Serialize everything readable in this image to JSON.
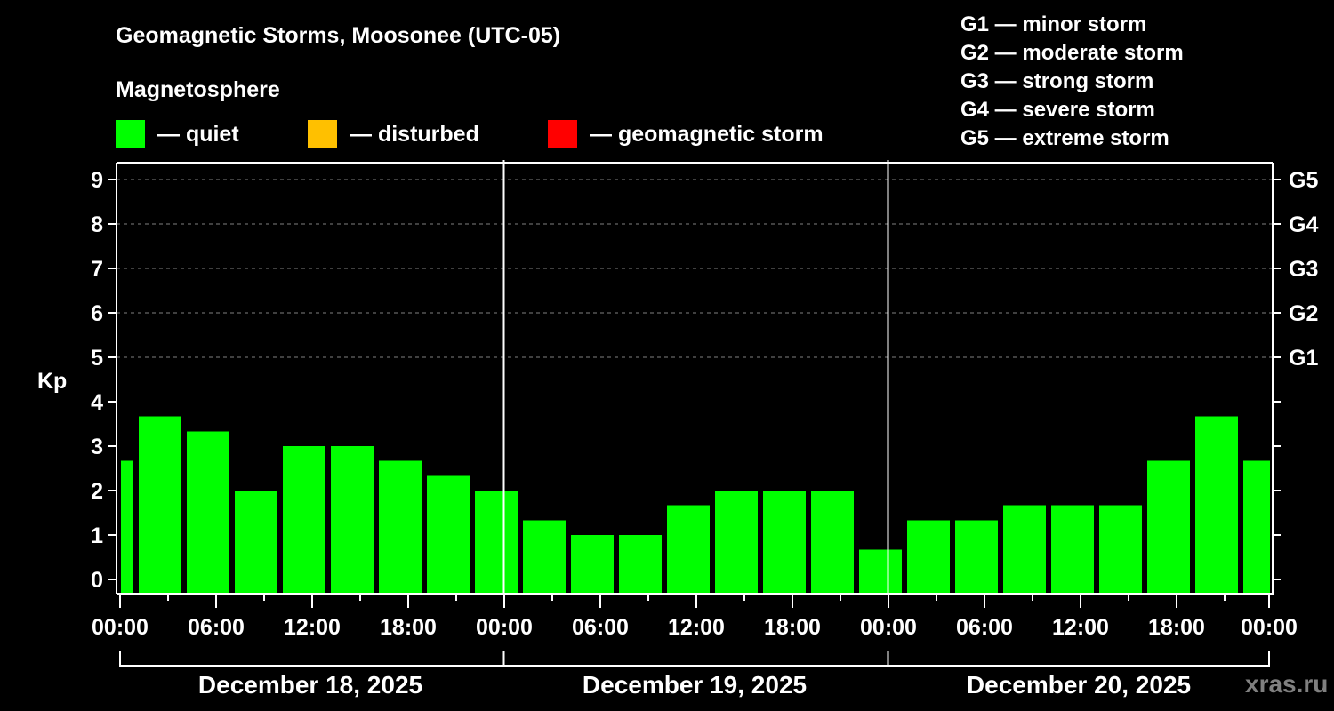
{
  "chart_data": {
    "type": "bar",
    "title": "Geomagnetic Storms, Moosonee (UTC-05)",
    "subtitle": "Magnetosphere",
    "xlabel": "",
    "ylabel": "Kp",
    "ylim": [
      0,
      9
    ],
    "yticks": [
      0,
      1,
      2,
      3,
      4,
      5,
      6,
      7,
      8,
      9
    ],
    "right_axis_labels": [
      {
        "kp": 5,
        "label": "G1"
      },
      {
        "kp": 6,
        "label": "G2"
      },
      {
        "kp": 7,
        "label": "G3"
      },
      {
        "kp": 8,
        "label": "G4"
      },
      {
        "kp": 9,
        "label": "G5"
      }
    ],
    "grid": "dashed horizontal at Kp 5-9",
    "xtick_labels": [
      "00:00",
      "06:00",
      "12:00",
      "18:00",
      "00:00",
      "06:00",
      "12:00",
      "18:00",
      "00:00",
      "06:00",
      "12:00",
      "18:00",
      "00:00"
    ],
    "days": [
      "December 18, 2025",
      "December 19, 2025",
      "December 20, 2025"
    ],
    "series": [
      {
        "name": "Kp",
        "color": "#00FF00",
        "bars": [
          {
            "start_h": 0,
            "end_h": 1,
            "value": 2.67
          },
          {
            "start_h": 1,
            "end_h": 4,
            "value": 3.67
          },
          {
            "start_h": 4,
            "end_h": 7,
            "value": 3.33
          },
          {
            "start_h": 7,
            "end_h": 10,
            "value": 2.0
          },
          {
            "start_h": 10,
            "end_h": 13,
            "value": 3.0
          },
          {
            "start_h": 13,
            "end_h": 16,
            "value": 3.0
          },
          {
            "start_h": 16,
            "end_h": 19,
            "value": 2.67
          },
          {
            "start_h": 19,
            "end_h": 22,
            "value": 2.33
          },
          {
            "start_h": 22,
            "end_h": 25,
            "value": 2.0
          },
          {
            "start_h": 25,
            "end_h": 28,
            "value": 1.33
          },
          {
            "start_h": 28,
            "end_h": 31,
            "value": 1.0
          },
          {
            "start_h": 31,
            "end_h": 34,
            "value": 1.0
          },
          {
            "start_h": 34,
            "end_h": 37,
            "value": 1.67
          },
          {
            "start_h": 37,
            "end_h": 40,
            "value": 2.0
          },
          {
            "start_h": 40,
            "end_h": 43,
            "value": 2.0
          },
          {
            "start_h": 43,
            "end_h": 46,
            "value": 2.0
          },
          {
            "start_h": 46,
            "end_h": 49,
            "value": 0.67
          },
          {
            "start_h": 49,
            "end_h": 52,
            "value": 1.33
          },
          {
            "start_h": 52,
            "end_h": 55,
            "value": 1.33
          },
          {
            "start_h": 55,
            "end_h": 58,
            "value": 1.67
          },
          {
            "start_h": 58,
            "end_h": 61,
            "value": 1.67
          },
          {
            "start_h": 61,
            "end_h": 64,
            "value": 1.67
          },
          {
            "start_h": 64,
            "end_h": 67,
            "value": 2.67
          },
          {
            "start_h": 67,
            "end_h": 70,
            "value": 3.67
          },
          {
            "start_h": 70,
            "end_h": 72,
            "value": 2.67
          }
        ]
      }
    ],
    "legend": [
      {
        "label": "— quiet",
        "color": "#00FF00"
      },
      {
        "label": "— disturbed",
        "color": "#FFC000"
      },
      {
        "label": "— geomagnetic storm",
        "color": "#FF0000"
      }
    ]
  },
  "header": {
    "title": "Geomagnetic Storms, Moosonee (UTC-05)",
    "subtitle": "Magnetosphere"
  },
  "legend": {
    "quiet": {
      "label": "— quiet",
      "color": "#00FF00"
    },
    "disturbed": {
      "label": "— disturbed",
      "color": "#FFC000"
    },
    "storm": {
      "label": "— geomagnetic storm",
      "color": "#FF0000"
    }
  },
  "g_scale": [
    "G1 — minor storm",
    "G2 — moderate storm",
    "G3 — strong storm",
    "G4 — severe storm",
    "G5 — extreme storm"
  ],
  "axis": {
    "ylabel": "Kp"
  },
  "watermark": "xras.ru"
}
